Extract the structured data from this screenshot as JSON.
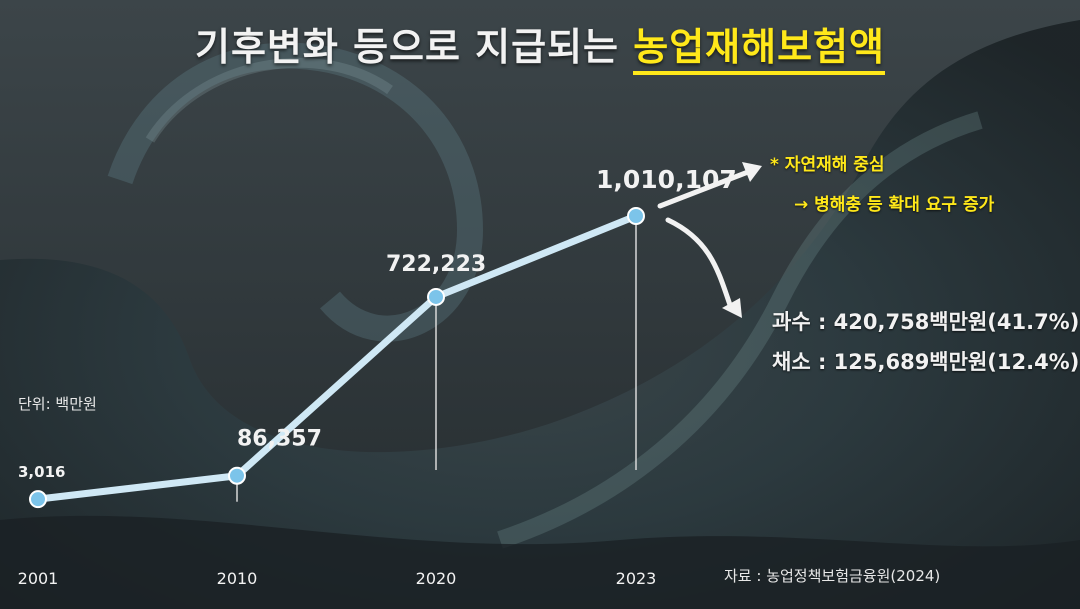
{
  "title": {
    "main": "기후변화 등으로 지급되는 ",
    "highlight": "농업재해보험액"
  },
  "unit_label": "단위: 백만원",
  "source": "자료 : 농업정책보험금융원(2024)",
  "notes": {
    "bullet1": "*  자연재해 중심",
    "bullet2": "→ 병해충 등 확대 요구 증가",
    "fruit": "과수 : 420,758백만원(41.7%)",
    "veg": "채소 : 125,689백만원(12.4%)"
  },
  "colors": {
    "line": "#cfe8f5",
    "point": "#7cc4ea",
    "highlight": "#ffe81a",
    "text": "#f2f2f2"
  },
  "chart_data": {
    "type": "line",
    "categories": [
      "2001",
      "2010",
      "2020",
      "2023"
    ],
    "series": [
      {
        "values": [
          3016,
          86357,
          722223,
          1010107
        ]
      }
    ],
    "data_labels": [
      "3,016",
      "86,357",
      "722,223",
      "1,010,107"
    ],
    "ylim": [
      0,
      1010107
    ],
    "grid": false
  }
}
